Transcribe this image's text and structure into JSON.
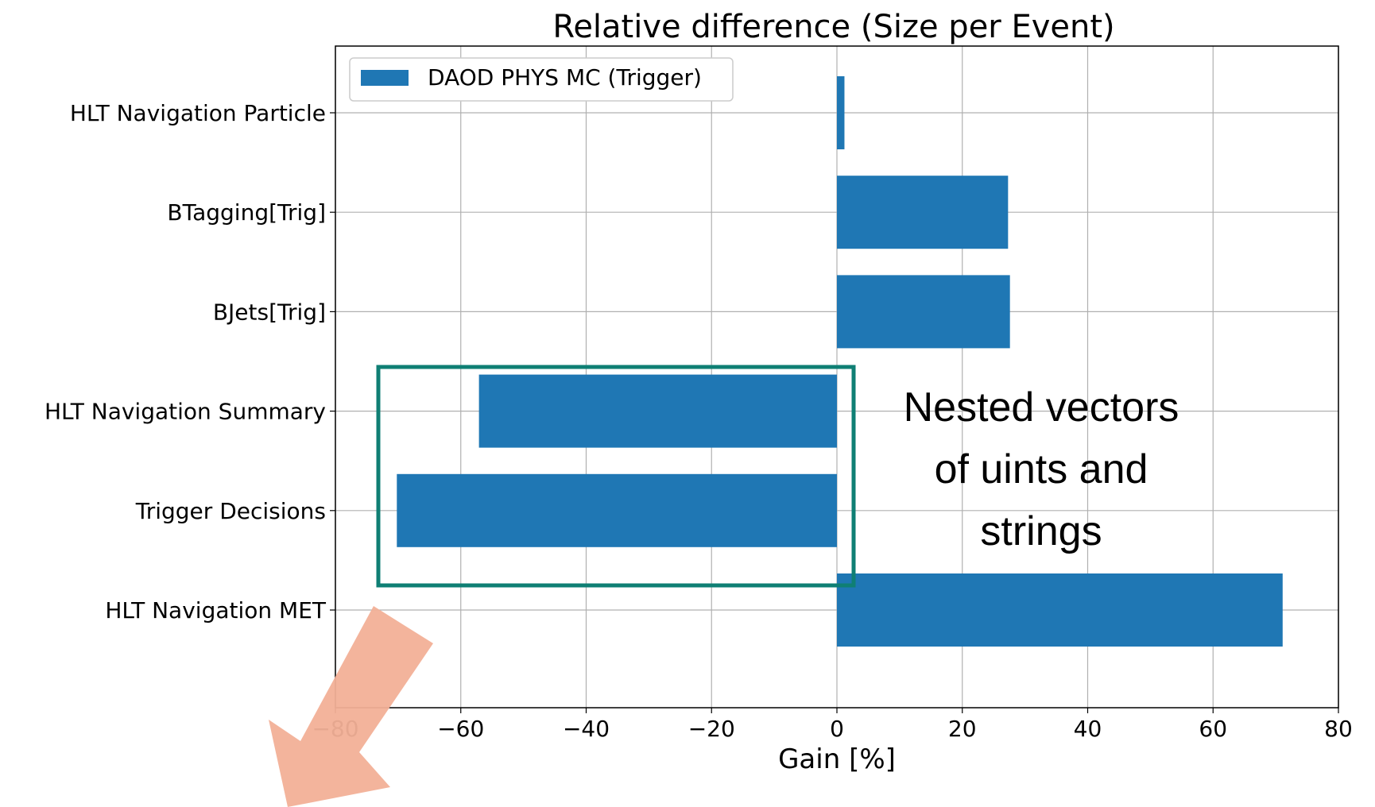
{
  "chart_data": {
    "type": "bar",
    "orientation": "horizontal",
    "title": "Relative difference (Size per Event)",
    "xlabel": "Gain [%]",
    "ylabel": "",
    "xlim": [
      -80,
      80
    ],
    "xticks": [
      "−80",
      "−60",
      "−40",
      "−20",
      "0",
      "20",
      "40",
      "60",
      "80"
    ],
    "grid": true,
    "legend_position": "top-left",
    "categories": [
      "HLT Navigation Particle",
      "BTagging[Trig]",
      "BJets[Trig]",
      "HLT Navigation Summary",
      "Trigger Decisions",
      "HLT Navigation MET"
    ],
    "series": [
      {
        "name": "DAOD PHYS MC (Trigger)",
        "values": [
          1.2,
          27.3,
          27.6,
          -57.1,
          -70.2,
          71.1
        ],
        "color": "#1f77b4"
      }
    ]
  },
  "annotation": {
    "lines": [
      "Nested vectors",
      "of uints and",
      "strings"
    ],
    "box_color": "#0f7f74",
    "arrow_color": "#f2b097"
  }
}
